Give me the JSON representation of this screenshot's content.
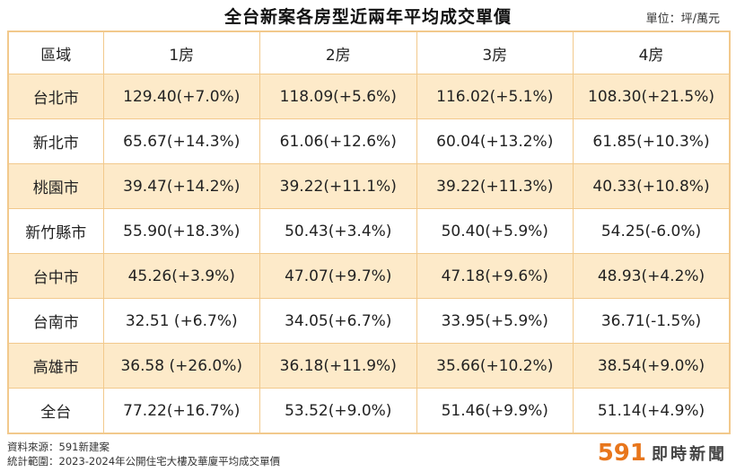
{
  "chart_data": {
    "type": "table",
    "title": "全台新案各房型近兩年平均成交單價",
    "unit_label": "單位：坪/萬元",
    "columns": [
      "區域",
      "1房",
      "2房",
      "3房",
      "4房"
    ],
    "rows": [
      {
        "region": "台北市",
        "cells": [
          "129.40(+7.0%)",
          "118.09(+5.6%)",
          "116.02(+5.1%)",
          "108.30(+21.5%)"
        ]
      },
      {
        "region": "新北市",
        "cells": [
          "65.67(+14.3%)",
          "61.06(+12.6%)",
          "60.04(+13.2%)",
          "61.85(+10.3%)"
        ]
      },
      {
        "region": "桃園市",
        "cells": [
          "39.47(+14.2%)",
          "39.22(+11.1%)",
          "39.22(+11.3%)",
          "40.33(+10.8%)"
        ]
      },
      {
        "region": "新竹縣市",
        "cells": [
          "55.90(+18.3%)",
          "50.43(+3.4%)",
          "50.40(+5.9%)",
          "54.25(-6.0%)"
        ]
      },
      {
        "region": "台中市",
        "cells": [
          "45.26(+3.9%)",
          "47.07(+9.7%)",
          "47.18(+9.6%)",
          "48.93(+4.2%)"
        ]
      },
      {
        "region": "台南市",
        "cells": [
          "32.51 (+6.7%)",
          "34.05(+6.7%)",
          "33.95(+5.9%)",
          "36.71(-1.5%)"
        ]
      },
      {
        "region": "高雄市",
        "cells": [
          "36.58 (+26.0%)",
          "36.18(+11.9%)",
          "35.66(+10.2%)",
          "38.54(+9.0%)"
        ]
      },
      {
        "region": "全台",
        "cells": [
          "77.22(+16.7%)",
          "53.52(+9.0%)",
          "51.46(+9.9%)",
          "51.14(+4.9%)"
        ]
      }
    ],
    "colors": {
      "shaded_row": "#fdeac9",
      "border": "#f2c98c",
      "brand_orange": "#e8761c"
    }
  },
  "footer": {
    "source": "資料來源：591新建案",
    "scope": "統計範圍：2023-2024年公開住宅大樓及華廈平均成交單價"
  },
  "brand": {
    "number": "591",
    "text": "即時新聞"
  }
}
